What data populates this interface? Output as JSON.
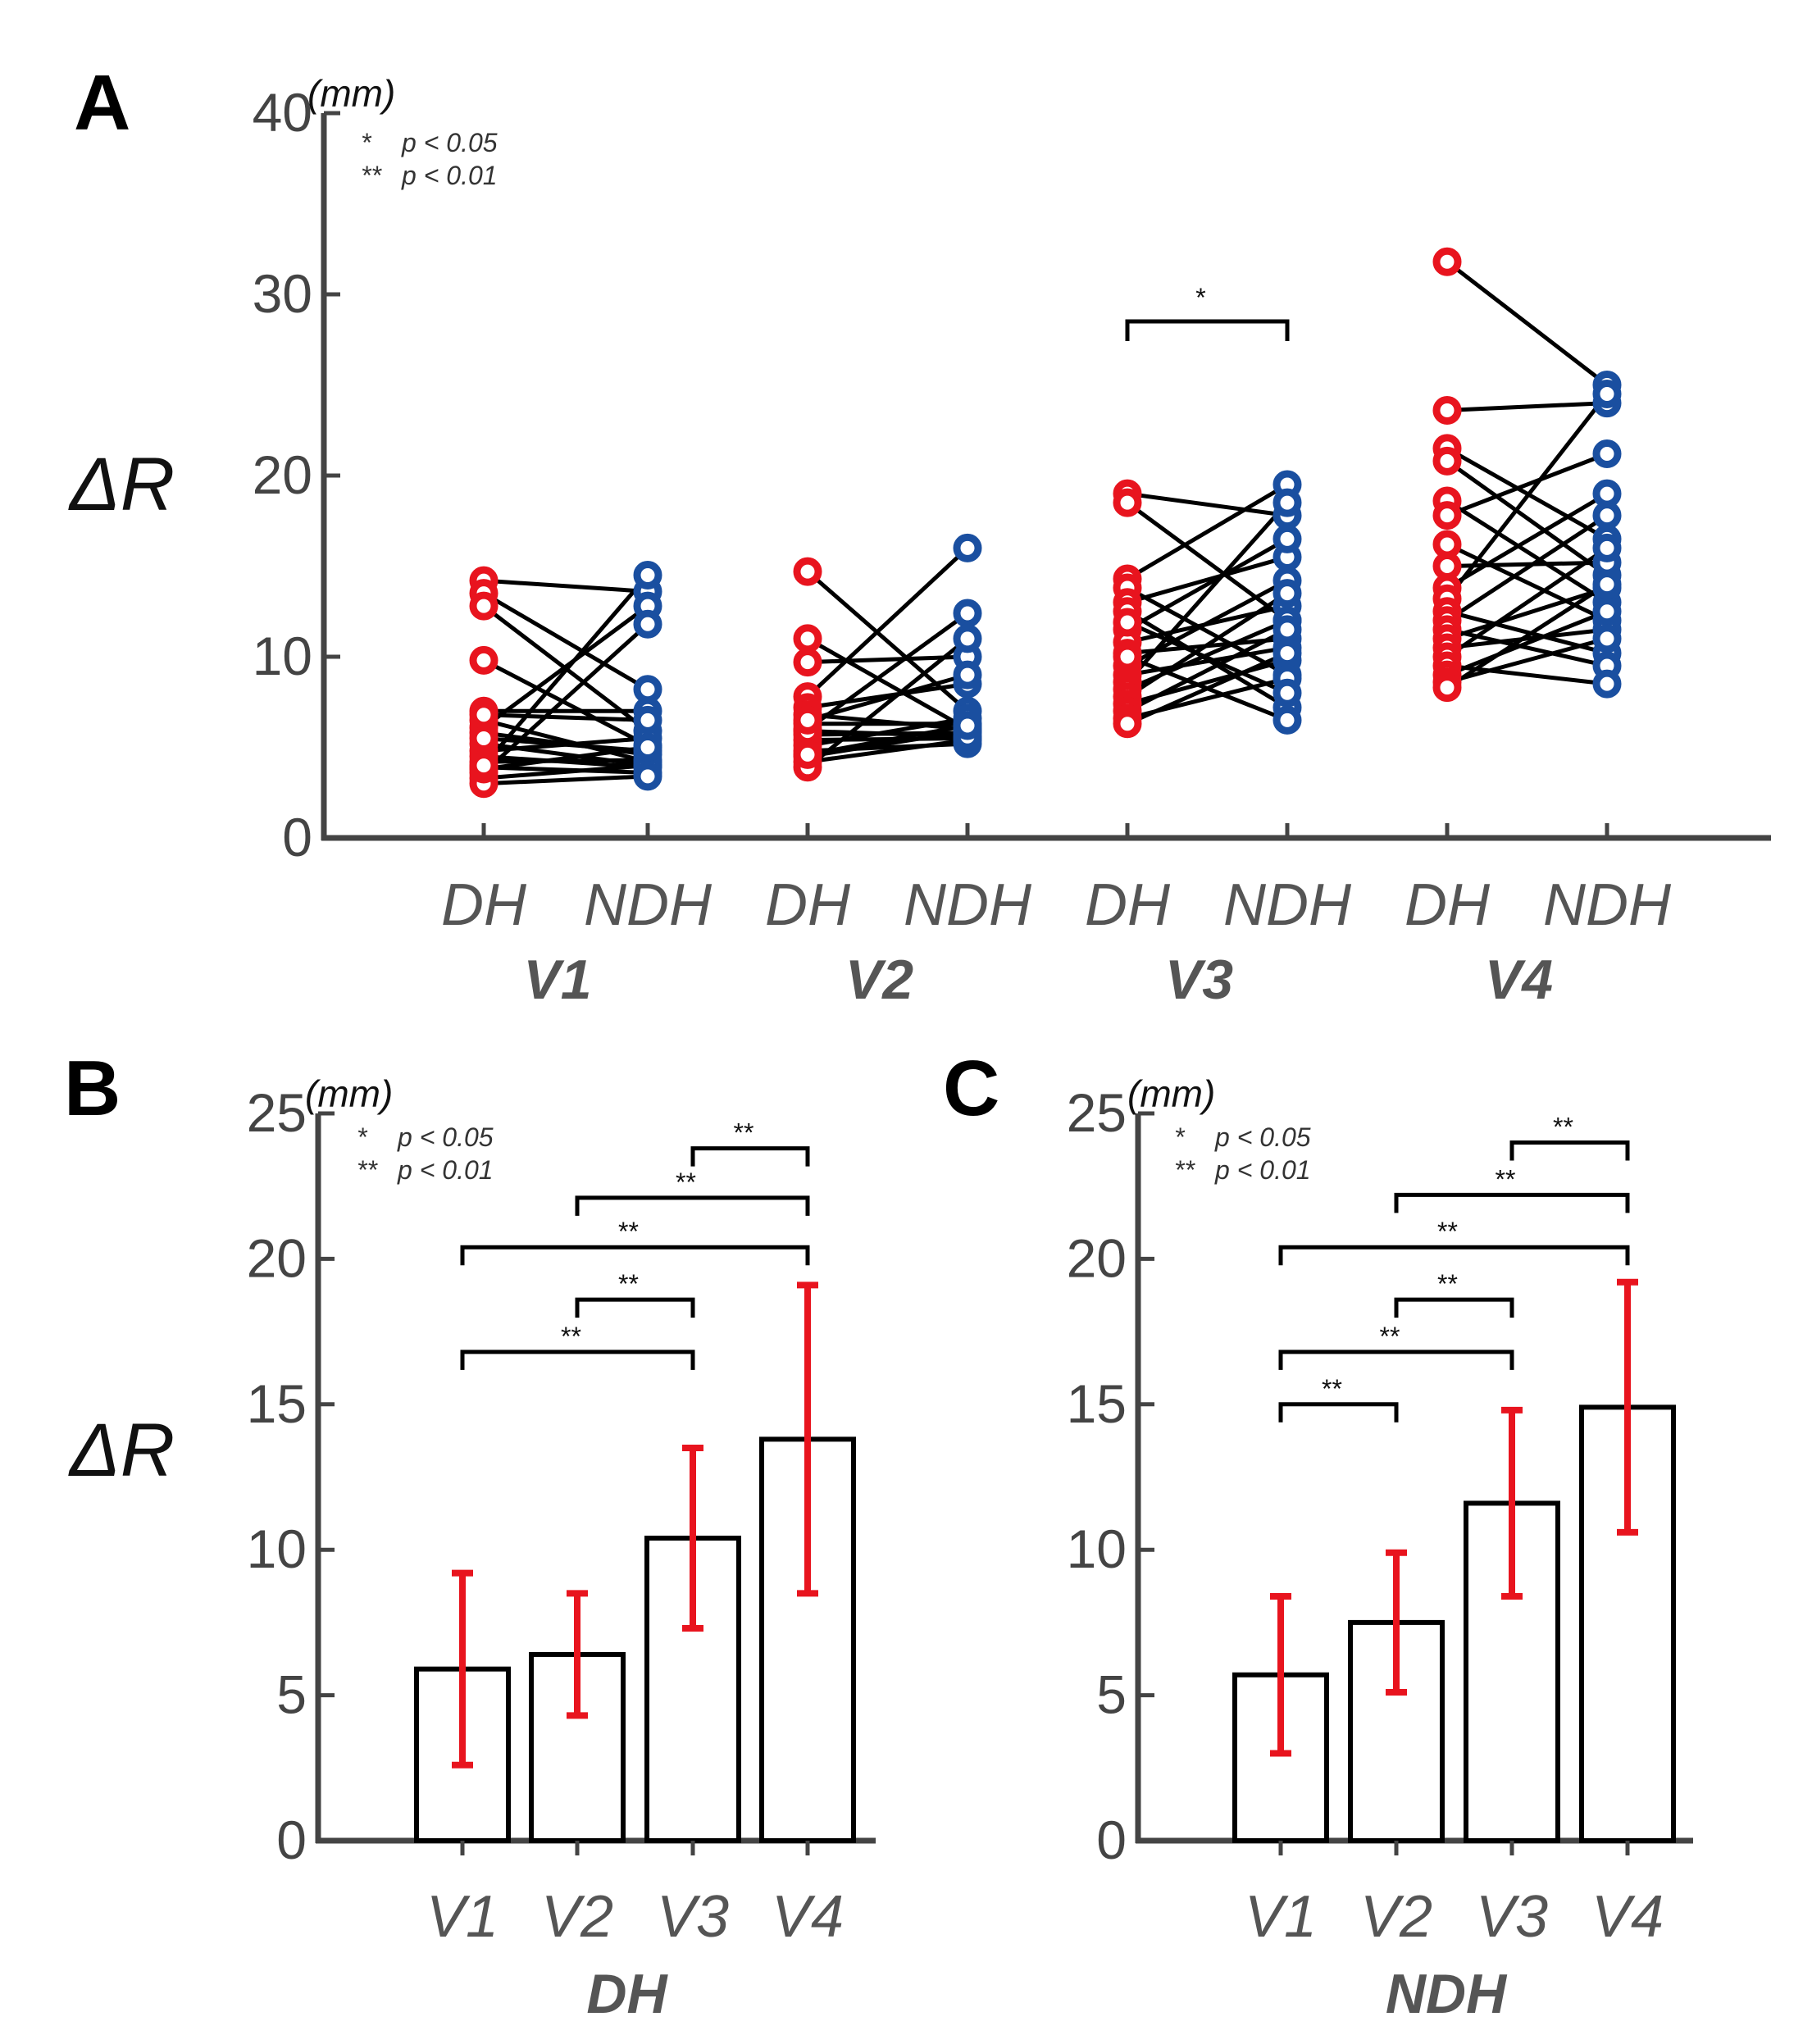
{
  "chart_data": [
    {
      "panel": "A",
      "type": "paired-scatter",
      "ylabel": "ΔR",
      "unit": "(mm)",
      "ylim": [
        0,
        40
      ],
      "yticks": [
        0,
        10,
        20,
        30,
        40
      ],
      "group_labels": [
        "V1",
        "V2",
        "V3",
        "V4"
      ],
      "condition_labels": [
        "DH",
        "NDH"
      ],
      "colors": {
        "DH": "#e8141e",
        "NDH": "#1a4fa0",
        "line": "#000000"
      },
      "legend": [
        {
          "sym": "*",
          "text": "p < 0.05"
        },
        {
          "sym": "**",
          "text": "p < 0.01"
        }
      ],
      "groups": [
        {
          "name": "V1",
          "pairs": [
            [
              14.2,
              13.6
            ],
            [
              13.5,
              8.2
            ],
            [
              12.8,
              5.9
            ],
            [
              9.8,
              5.1
            ],
            [
              7.0,
              7.0
            ],
            [
              6.5,
              4.2
            ],
            [
              6.1,
              12.8
            ],
            [
              5.8,
              4.6
            ],
            [
              5.2,
              4.0
            ],
            [
              4.8,
              5.5
            ],
            [
              4.5,
              3.9
            ],
            [
              4.2,
              4.3
            ],
            [
              3.9,
              3.6
            ],
            [
              3.6,
              11.8
            ],
            [
              3.3,
              4.0
            ],
            [
              3.0,
              3.4
            ],
            [
              5.5,
              4.8
            ],
            [
              3.8,
              5.0
            ],
            [
              4.0,
              14.5
            ],
            [
              6.8,
              6.5
            ]
          ]
        },
        {
          "name": "V2",
          "pairs": [
            [
              14.7,
              7.0
            ],
            [
              11.0,
              6.0
            ],
            [
              9.7,
              10.0
            ],
            [
              7.8,
              16.0
            ],
            [
              7.2,
              8.5
            ],
            [
              6.8,
              6.0
            ],
            [
              6.3,
              6.3
            ],
            [
              6.0,
              12.4
            ],
            [
              5.7,
              5.8
            ],
            [
              5.4,
              5.5
            ],
            [
              5.1,
              6.6
            ],
            [
              4.8,
              5.2
            ],
            [
              4.5,
              5.9
            ],
            [
              4.2,
              5.4
            ],
            [
              3.9,
              11.0
            ],
            [
              5.9,
              5.6
            ],
            [
              6.5,
              9.0
            ],
            [
              4.6,
              6.2
            ]
          ]
        },
        {
          "name": "V3",
          "pairs": [
            [
              19.0,
              17.8
            ],
            [
              18.5,
              12.0
            ],
            [
              14.3,
              19.5
            ],
            [
              13.8,
              9.0
            ],
            [
              13.0,
              15.5
            ],
            [
              12.5,
              7.2
            ],
            [
              11.5,
              16.5
            ],
            [
              10.8,
              12.8
            ],
            [
              10.2,
              11.0
            ],
            [
              9.5,
              14.2
            ],
            [
              9.0,
              10.5
            ],
            [
              8.6,
              18.5
            ],
            [
              8.2,
              12.0
            ],
            [
              7.8,
              13.5
            ],
            [
              7.4,
              9.8
            ],
            [
              7.0,
              11.5
            ],
            [
              6.6,
              8.8
            ],
            [
              6.3,
              10.2
            ],
            [
              10.0,
              6.5
            ],
            [
              11.9,
              8.0
            ]
          ]
        },
        {
          "name": "V4",
          "pairs": [
            [
              31.8,
              25.0
            ],
            [
              23.6,
              24.0
            ],
            [
              21.5,
              16.5
            ],
            [
              20.8,
              14.5
            ],
            [
              18.6,
              13.0
            ],
            [
              17.8,
              21.2
            ],
            [
              16.2,
              12.0
            ],
            [
              15.0,
              15.2
            ],
            [
              13.8,
              19.0
            ],
            [
              13.2,
              24.5
            ],
            [
              12.5,
              10.2
            ],
            [
              12.0,
              17.8
            ],
            [
              11.5,
              9.5
            ],
            [
              11.0,
              13.8
            ],
            [
              10.5,
              11.5
            ],
            [
              10.0,
              16.0
            ],
            [
              9.5,
              8.5
            ],
            [
              9.0,
              12.5
            ],
            [
              8.6,
              11.0
            ],
            [
              8.3,
              14.0
            ]
          ]
        }
      ],
      "significance": [
        {
          "between": [
            "DH",
            "NDH"
          ],
          "group": "V3",
          "label": "*"
        }
      ]
    },
    {
      "panel": "B",
      "type": "bar",
      "xlabel": "DH",
      "ylabel": "ΔR",
      "unit": "(mm)",
      "ylim": [
        0,
        25
      ],
      "yticks": [
        0,
        5,
        10,
        15,
        20,
        25
      ],
      "categories": [
        "V1",
        "V2",
        "V3",
        "V4"
      ],
      "values": [
        5.9,
        6.4,
        10.4,
        13.8
      ],
      "error": [
        3.3,
        2.1,
        3.1,
        5.3
      ],
      "error_color": "#e8141e",
      "legend": [
        {
          "sym": "*",
          "text": "p < 0.05"
        },
        {
          "sym": "**",
          "text": "p < 0.01"
        }
      ],
      "significance": [
        {
          "from": 2,
          "to": 3,
          "level": 23.8,
          "label": "**"
        },
        {
          "from": 1,
          "to": 3,
          "level": 22.1,
          "label": "**"
        },
        {
          "from": 0,
          "to": 3,
          "level": 20.4,
          "label": "**"
        },
        {
          "from": 1,
          "to": 2,
          "level": 18.6,
          "label": "**"
        },
        {
          "from": 0,
          "to": 2,
          "level": 16.8,
          "label": "**"
        }
      ]
    },
    {
      "panel": "C",
      "type": "bar",
      "xlabel": "NDH",
      "ylabel": "",
      "unit": "(mm)",
      "ylim": [
        0,
        25
      ],
      "yticks": [
        0,
        5,
        10,
        15,
        20,
        25
      ],
      "categories": [
        "V1",
        "V2",
        "V3",
        "V4"
      ],
      "values": [
        5.7,
        7.5,
        11.6,
        14.9
      ],
      "error": [
        2.7,
        2.4,
        3.2,
        4.3
      ],
      "error_color": "#e8141e",
      "legend": [
        {
          "sym": "*",
          "text": "p < 0.05"
        },
        {
          "sym": "**",
          "text": "p < 0.01"
        }
      ],
      "significance": [
        {
          "from": 2,
          "to": 3,
          "level": 24.0,
          "label": "**"
        },
        {
          "from": 1,
          "to": 3,
          "level": 22.2,
          "label": "**"
        },
        {
          "from": 0,
          "to": 3,
          "level": 20.4,
          "label": "**"
        },
        {
          "from": 1,
          "to": 2,
          "level": 18.6,
          "label": "**"
        },
        {
          "from": 0,
          "to": 2,
          "level": 16.8,
          "label": "**"
        },
        {
          "from": 0,
          "to": 1,
          "level": 15.0,
          "label": "**"
        }
      ]
    }
  ]
}
